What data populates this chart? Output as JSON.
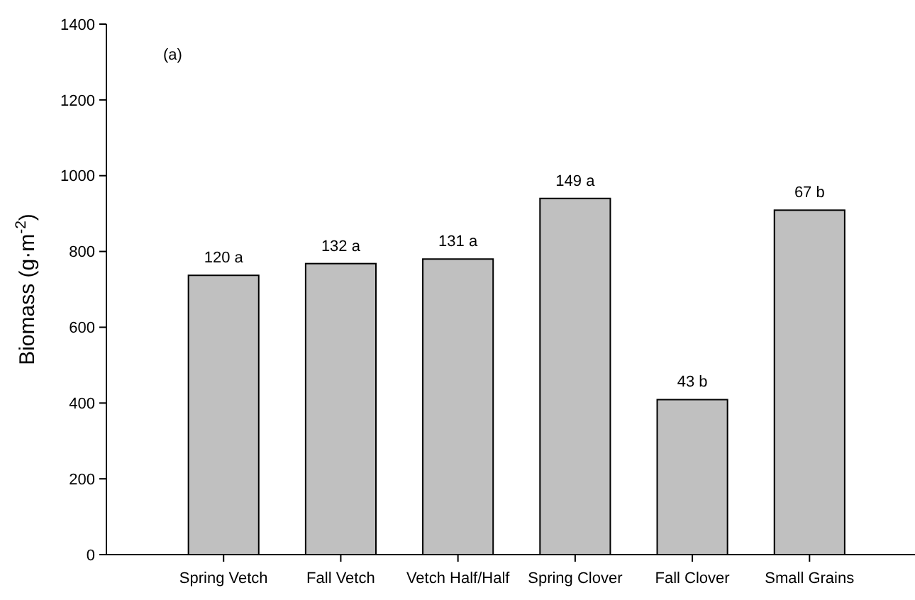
{
  "chart_data": {
    "type": "bar",
    "ylabel": "Biomass (g·m$^{-2}$)",
    "categories": [
      "Spring Vetch",
      "Fall Vetch",
      "Vetch Half/Half",
      "Spring Clover",
      "Fall Clover",
      "Small Grains"
    ],
    "values": [
      737,
      768,
      780,
      940,
      409,
      909
    ],
    "color": "#c0c0c0",
    "ylim": [
      0,
      1400
    ],
    "yticks": [
      0,
      200,
      400,
      600,
      800,
      1000,
      1200,
      1400
    ],
    "grid": false,
    "annotations": [
      "(a)",
      {
        "text": "120 a",
        "x": "Spring Vetch",
        "y": 737
      },
      {
        "text": "132 a",
        "x": "Fall Vetch",
        "y": 768
      },
      {
        "text": "131 a",
        "x": "Vetch Half/Half",
        "y": 780
      },
      {
        "text": "149 a",
        "x": "Spring Clover",
        "y": 940
      },
      {
        "text": "43 b",
        "x": "Fall Clover",
        "y": 409
      },
      {
        "text": "67 b",
        "x": "Small Grains",
        "y": 909
      }
    ]
  }
}
